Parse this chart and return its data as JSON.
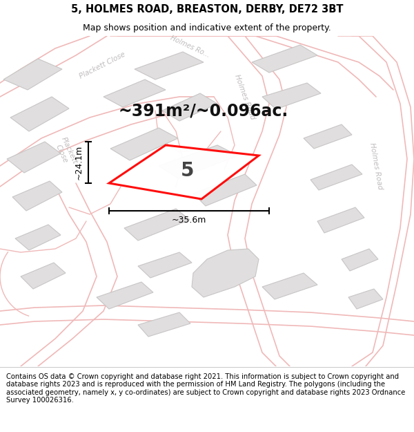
{
  "title": "5, HOLMES ROAD, BREASTON, DERBY, DE72 3BT",
  "subtitle": "Map shows position and indicative extent of the property.",
  "footer": "Contains OS data © Crown copyright and database right 2021. This information is subject to Crown copyright and database rights 2023 and is reproduced with the permission of HM Land Registry. The polygons (including the associated geometry, namely x, y co-ordinates) are subject to Crown copyright and database rights 2023 Ordnance Survey 100026316.",
  "area_text": "~391m²/~0.096ac.",
  "width_label": "~35.6m",
  "height_label": "~24.1m",
  "property_number": "5",
  "map_bg": "#f7f6f6",
  "road_line_color": "#f0b8b8",
  "building_fill": "#e0dede",
  "building_edge": "#c8c5c5",
  "highlight_color": "#ff0000",
  "text_color": "#000000",
  "label_color": "#c0bcbc",
  "header_bg": "#ffffff",
  "footer_bg": "#ffffff",
  "title_fontsize": 10.5,
  "subtitle_fontsize": 9,
  "footer_fontsize": 7.2,
  "area_fontsize": 17,
  "dim_fontsize": 9,
  "prop_num_fontsize": 20
}
